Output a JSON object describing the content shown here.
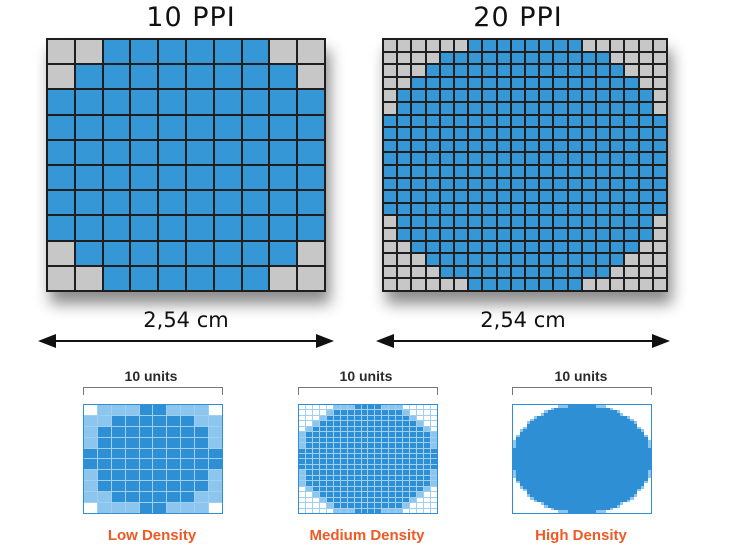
{
  "top_panels": {
    "left": {
      "title": "10 PPI",
      "measure": "2,54 cm"
    },
    "right": {
      "title": "20 PPI",
      "measure": "2,54 cm"
    }
  },
  "bottom_panels": [
    {
      "units": "10 units",
      "label": "Low Density"
    },
    {
      "units": "10 units",
      "label": "Medium Density"
    },
    {
      "units": "10 units",
      "label": "High Density"
    }
  ],
  "colors": {
    "fill_blue": "#3597d5",
    "off_gray": "#c7c7c7",
    "grid_line": "#1e1e1e",
    "density_label": "#ef5a24",
    "small_light": "#ffffff",
    "small_mid": "#8cc6ee",
    "small_dark": "#2e8fd4"
  },
  "icons": {
    "measure_arrow": "double-headed-arrow-icon"
  }
}
